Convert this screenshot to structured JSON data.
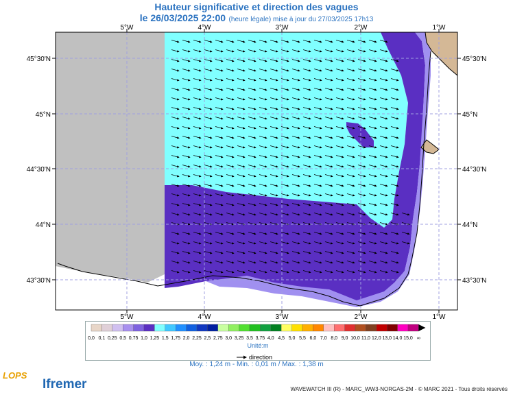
{
  "title": "Hauteur significative et direction des vagues",
  "subtitle": {
    "date": "le 26/03/2025 22:00",
    "note": "(heure légale) mise à jour du 27/03/2025 17h13"
  },
  "map": {
    "lon_labels": [
      "5°W",
      "4°W",
      "3°W",
      "2°W",
      "1°W"
    ],
    "lat_labels": [
      "45°30'N",
      "45°N",
      "44°30'N",
      "44°N",
      "43°30'N"
    ],
    "colors": {
      "land_masked": "#c0c0c0",
      "land": "#d4b896",
      "cyan": "#80ffff",
      "dark_purple": "#5a2fc2",
      "med_purple": "#7b5ee0",
      "light_purple": "#a090f0",
      "grid": "#a0a0e0"
    }
  },
  "legend": {
    "values": [
      "0,0",
      "0,1",
      "0,25",
      "0,5",
      "0,75",
      "1,0",
      "1,25",
      "1,5",
      "1,75",
      "2,0",
      "2,25",
      "2,5",
      "2,75",
      "3,0",
      "3,25",
      "3,5",
      "3,75",
      "4,0",
      "4,5",
      "5,0",
      "5,5",
      "6,0",
      "7,0",
      "8,0",
      "9,0",
      "10,0",
      "11,0",
      "12,0",
      "13,0",
      "14,0",
      "15,0",
      "∞"
    ],
    "colors": [
      "#e8d6c8",
      "#e0d0d8",
      "#d0c0f0",
      "#a890ef",
      "#7e62e0",
      "#5a2fc2",
      "#80ffff",
      "#40c8ff",
      "#2090ff",
      "#1060e0",
      "#1038c0",
      "#0020a0",
      "#c8ffa0",
      "#90f060",
      "#50e030",
      "#20c020",
      "#10a040",
      "#008020",
      "#ffff60",
      "#ffe000",
      "#ffb000",
      "#ff8800",
      "#ffc0c0",
      "#ff7070",
      "#e03030",
      "#b05020",
      "#804020",
      "#c00000",
      "#800000",
      "#ff00c0",
      "#c00080"
    ],
    "unit": "Unité:m",
    "direction_label": "direction"
  },
  "stats": "Moy. : 1,24 m   -   Min. : 0,01 m / Max. : 1,38 m",
  "credit": "WAVEWATCH III (R) - MARC_WW3-NORGAS-2M - © MARC 2021 - Tous droits réservés",
  "logos": {
    "lops": "LOPS",
    "ifremer": "Ifremer"
  }
}
